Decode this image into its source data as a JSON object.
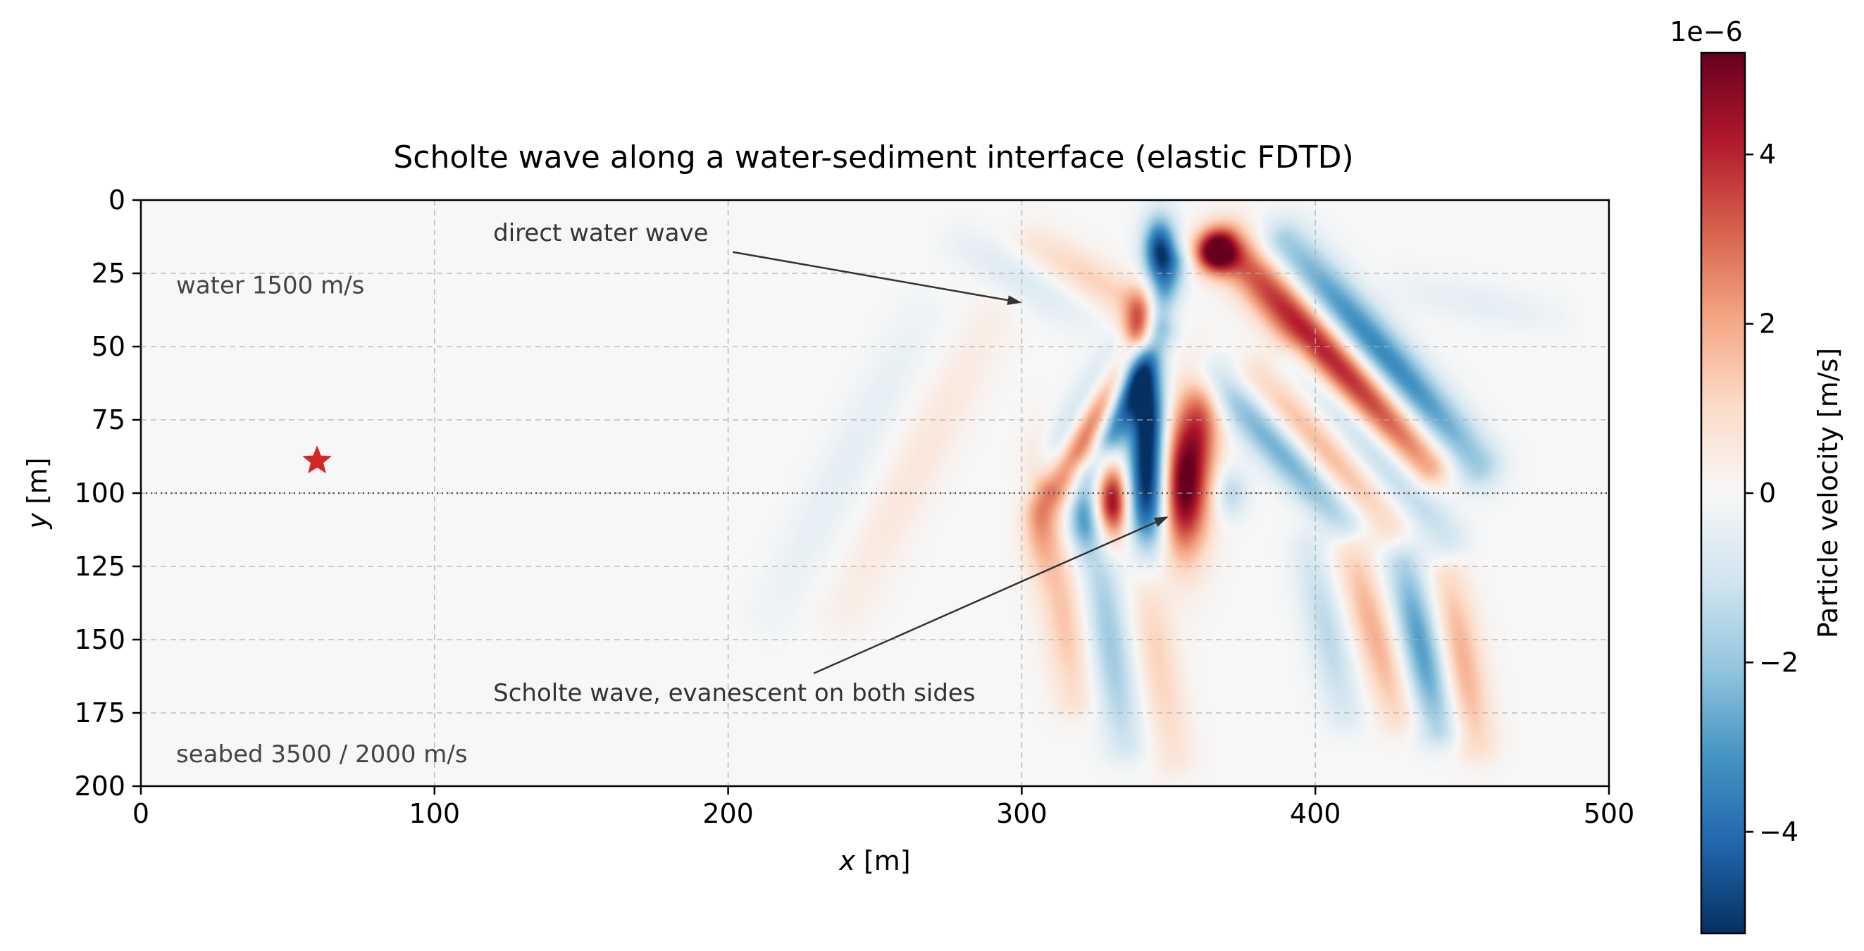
{
  "chart_data": {
    "type": "heatmap",
    "title": "Scholte wave along a water-sediment interface (elastic FDTD)",
    "xlabel_var": "x",
    "xlabel_unit": "[m]",
    "ylabel_var": "y",
    "ylabel_unit": "[m]",
    "xlim": [
      0,
      500
    ],
    "ylim": [
      200,
      0
    ],
    "y_inverted": true,
    "xticks": [
      0,
      100,
      200,
      300,
      400,
      500
    ],
    "yticks": [
      0,
      25,
      50,
      75,
      100,
      125,
      150,
      175,
      200
    ],
    "grid": true,
    "colormap": "RdBu_r",
    "colorbar": {
      "label": "Particle velocity [m/s]",
      "offset_text": "1e−6",
      "scale": 1e-06,
      "vmin": -5.2,
      "vmax": 5.2,
      "ticks": [
        -4,
        -2,
        0,
        2,
        4
      ],
      "tick_labels": [
        "−4",
        "−2",
        "0",
        "2",
        "4"
      ]
    },
    "interface_depth": 100,
    "source": {
      "x": 60,
      "y": 89,
      "marker": "star",
      "color": "#d62728"
    },
    "layer_labels": [
      {
        "text": "water 1500 m/s",
        "x": 12,
        "y": 29
      },
      {
        "text": "seabed 3500 / 2000 m/s",
        "x": 12,
        "y": 189
      }
    ],
    "annotations": [
      {
        "text": "direct water wave",
        "text_x": 120,
        "text_y": 11,
        "arrow_to": [
          300,
          35
        ]
      },
      {
        "text": "Scholte wave, evanescent on both sides",
        "text_x": 120,
        "text_y": 168,
        "arrow_to": [
          350,
          108
        ]
      }
    ],
    "field_features": [
      {
        "x": 355,
        "y": 98,
        "sx": 6,
        "sy": 16,
        "a": 5.5
      },
      {
        "x": 343,
        "y": 98,
        "sx": 5,
        "sy": 16,
        "a": -5.5
      },
      {
        "x": 331,
        "y": 103,
        "sx": 4,
        "sy": 9,
        "a": 4.8
      },
      {
        "x": 321,
        "y": 106,
        "sx": 4,
        "sy": 9,
        "a": -3.0
      },
      {
        "x": 306,
        "y": 105,
        "sx": 4,
        "sy": 14,
        "a": 2.0
      },
      {
        "x": 371,
        "y": 100,
        "sx": 4,
        "sy": 6,
        "a": -1.5
      },
      {
        "x": 347,
        "y": 17,
        "sx": 4,
        "sy": 8,
        "a": -4.8
      },
      {
        "x": 341,
        "y": 43,
        "sx": 4,
        "sy": 8,
        "a": 4.5
      },
      {
        "x": 343,
        "y": 70,
        "sx": 4,
        "sy": 13,
        "a": -4.2
      },
      {
        "x": 366,
        "y": 18,
        "sx": 5,
        "sy": 5,
        "a": 5.0
      },
      {
        "x": 361,
        "y": 75,
        "sx": 5,
        "sy": 12,
        "a": 2.5
      }
    ],
    "field_bands": [
      {
        "x1": 370,
        "y1": 15,
        "x2": 438,
        "y2": 90,
        "w": 6,
        "a": 4.5
      },
      {
        "x1": 390,
        "y1": 15,
        "x2": 455,
        "y2": 90,
        "w": 6,
        "a": -3.6
      },
      {
        "x1": 340,
        "y1": 50,
        "x2": 312,
        "y2": 98,
        "w": 5,
        "a": 4.6
      },
      {
        "x1": 333,
        "y1": 50,
        "x2": 305,
        "y2": 98,
        "w": 4,
        "a": -2.2
      },
      {
        "x1": 347,
        "y1": 45,
        "x2": 323,
        "y2": 92,
        "w": 4,
        "a": -3.4
      },
      {
        "x1": 352,
        "y1": 22,
        "x2": 330,
        "y2": 80,
        "w": 4,
        "a": -3.0
      },
      {
        "x1": 365,
        "y1": 60,
        "x2": 410,
        "y2": 110,
        "w": 5,
        "a": -2.6
      },
      {
        "x1": 380,
        "y1": 60,
        "x2": 425,
        "y2": 110,
        "w": 5,
        "a": 1.8
      },
      {
        "x1": 395,
        "y1": 55,
        "x2": 445,
        "y2": 115,
        "w": 5,
        "a": -1.8
      },
      {
        "x1": 412,
        "y1": 120,
        "x2": 428,
        "y2": 175,
        "w": 5,
        "a": 1.9
      },
      {
        "x1": 430,
        "y1": 125,
        "x2": 442,
        "y2": 180,
        "w": 5,
        "a": -3.0
      },
      {
        "x1": 445,
        "y1": 130,
        "x2": 455,
        "y2": 185,
        "w": 5,
        "a": 1.9
      },
      {
        "x1": 398,
        "y1": 120,
        "x2": 410,
        "y2": 175,
        "w": 5,
        "a": -1.4
      },
      {
        "x1": 310,
        "y1": 110,
        "x2": 318,
        "y2": 170,
        "w": 5,
        "a": 1.5
      },
      {
        "x1": 325,
        "y1": 115,
        "x2": 335,
        "y2": 185,
        "w": 5,
        "a": -1.9
      },
      {
        "x1": 340,
        "y1": 120,
        "x2": 352,
        "y2": 190,
        "w": 5,
        "a": 1.2
      },
      {
        "x1": 290,
        "y1": 40,
        "x2": 240,
        "y2": 140,
        "w": 6,
        "a": 0.6
      },
      {
        "x1": 265,
        "y1": 40,
        "x2": 215,
        "y2": 140,
        "w": 6,
        "a": -0.5
      },
      {
        "x1": 305,
        "y1": 15,
        "x2": 345,
        "y2": 40,
        "w": 5,
        "a": 1.2
      },
      {
        "x1": 280,
        "y1": 15,
        "x2": 320,
        "y2": 40,
        "w": 5,
        "a": -0.7
      },
      {
        "x1": 430,
        "y1": 30,
        "x2": 480,
        "y2": 40,
        "w": 5,
        "a": -0.5
      }
    ]
  }
}
